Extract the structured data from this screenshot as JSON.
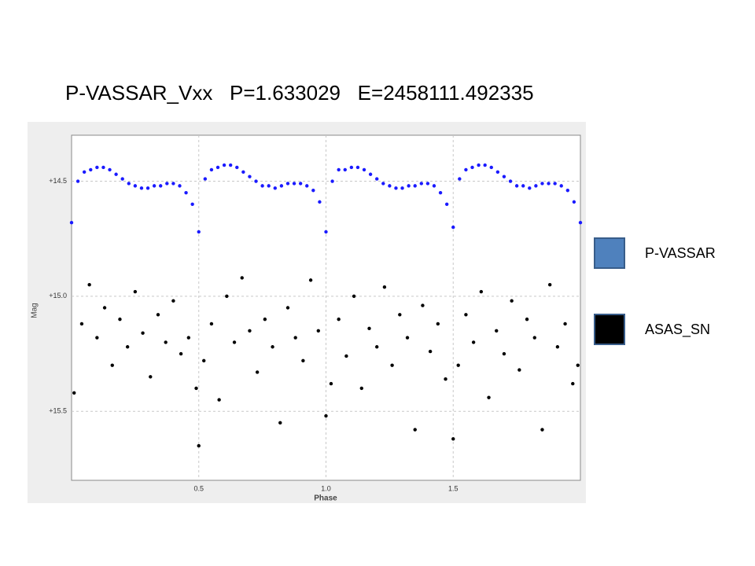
{
  "chart_data": {
    "type": "scatter",
    "title": "P-VASSAR_Vxx   P=1.633029   E=2458111.492335",
    "xlabel": "Phase",
    "ylabel": "Mag",
    "xlim": [
      0,
      2
    ],
    "ylim": [
      14.3,
      15.8
    ],
    "y_inverted": true,
    "xticks": [
      0.5,
      {
        "value": 1,
        "label": "1.0"
      },
      1.5
    ],
    "yticks": [
      {
        "value": 14.5,
        "label": "+14.5"
      },
      {
        "value": 15,
        "label": "+15.0"
      },
      {
        "value": 15.5,
        "label": "+15.5"
      }
    ],
    "grid": true,
    "legend": "right",
    "series": [
      {
        "name": "P-VASSAR",
        "color": "#1a1aff",
        "legend_color": "#4f81bd",
        "x": [
          0,
          0.025,
          0.05,
          0.075,
          0.1,
          0.125,
          0.15,
          0.175,
          0.2,
          0.225,
          0.25,
          0.275,
          0.3,
          0.325,
          0.35,
          0.375,
          0.4,
          0.425,
          0.45,
          0.475,
          0.5,
          0.525,
          0.55,
          0.575,
          0.6,
          0.625,
          0.65,
          0.675,
          0.7,
          0.725,
          0.75,
          0.775,
          0.8,
          0.825,
          0.85,
          0.875,
          0.9,
          0.925,
          0.95,
          0.975,
          1,
          1.025,
          1.05,
          1.075,
          1.1,
          1.125,
          1.15,
          1.175,
          1.2,
          1.225,
          1.25,
          1.275,
          1.3,
          1.325,
          1.35,
          1.375,
          1.4,
          1.425,
          1.45,
          1.475,
          1.5,
          1.525,
          1.55,
          1.575,
          1.6,
          1.625,
          1.65,
          1.675,
          1.7,
          1.725,
          1.75,
          1.775,
          1.8,
          1.825,
          1.85,
          1.875,
          1.9,
          1.925,
          1.95,
          1.975,
          2
        ],
        "values": [
          14.68,
          14.5,
          14.46,
          14.45,
          14.44,
          14.44,
          14.45,
          14.47,
          14.49,
          14.51,
          14.52,
          14.53,
          14.53,
          14.52,
          14.52,
          14.51,
          14.51,
          14.52,
          14.55,
          14.6,
          14.72,
          14.49,
          14.45,
          14.44,
          14.43,
          14.43,
          14.44,
          14.46,
          14.48,
          14.5,
          14.52,
          14.52,
          14.53,
          14.52,
          14.51,
          14.51,
          14.51,
          14.52,
          14.54,
          14.59,
          14.72,
          14.5,
          14.45,
          14.45,
          14.44,
          14.44,
          14.45,
          14.47,
          14.49,
          14.51,
          14.52,
          14.53,
          14.53,
          14.52,
          14.52,
          14.51,
          14.51,
          14.52,
          14.55,
          14.6,
          14.7,
          14.49,
          14.45,
          14.44,
          14.43,
          14.43,
          14.44,
          14.46,
          14.48,
          14.5,
          14.52,
          14.52,
          14.53,
          14.52,
          14.51,
          14.51,
          14.51,
          14.52,
          14.54,
          14.59,
          14.68
        ]
      },
      {
        "name": "ASAS_SN",
        "color": "#000000",
        "legend_color": "#000000",
        "x": [
          0.01,
          0.04,
          0.07,
          0.1,
          0.13,
          0.16,
          0.19,
          0.22,
          0.25,
          0.28,
          0.31,
          0.34,
          0.37,
          0.4,
          0.43,
          0.46,
          0.49,
          0.5,
          0.52,
          0.55,
          0.58,
          0.61,
          0.64,
          0.67,
          0.7,
          0.73,
          0.76,
          0.79,
          0.82,
          0.85,
          0.88,
          0.91,
          0.94,
          0.97,
          1,
          1.02,
          1.05,
          1.08,
          1.11,
          1.14,
          1.17,
          1.2,
          1.23,
          1.26,
          1.29,
          1.32,
          1.35,
          1.38,
          1.41,
          1.44,
          1.47,
          1.5,
          1.52,
          1.55,
          1.58,
          1.61,
          1.64,
          1.67,
          1.7,
          1.73,
          1.76,
          1.79,
          1.82,
          1.85,
          1.88,
          1.91,
          1.94,
          1.97,
          1.99
        ],
        "values": [
          15.42,
          15.12,
          14.95,
          15.18,
          15.05,
          15.3,
          15.1,
          15.22,
          14.98,
          15.16,
          15.35,
          15.08,
          15.2,
          15.02,
          15.25,
          15.18,
          15.4,
          15.65,
          15.28,
          15.12,
          15.45,
          15.0,
          15.2,
          14.92,
          15.15,
          15.33,
          15.1,
          15.22,
          15.55,
          15.05,
          15.18,
          15.28,
          14.93,
          15.15,
          15.52,
          15.38,
          15.1,
          15.26,
          15.0,
          15.4,
          15.14,
          15.22,
          14.96,
          15.3,
          15.08,
          15.18,
          15.58,
          15.04,
          15.24,
          15.12,
          15.36,
          15.62,
          15.3,
          15.08,
          15.2,
          14.98,
          15.44,
          15.15,
          15.25,
          15.02,
          15.32,
          15.1,
          15.18,
          15.58,
          14.95,
          15.22,
          15.12,
          15.38,
          15.3
        ]
      }
    ]
  }
}
